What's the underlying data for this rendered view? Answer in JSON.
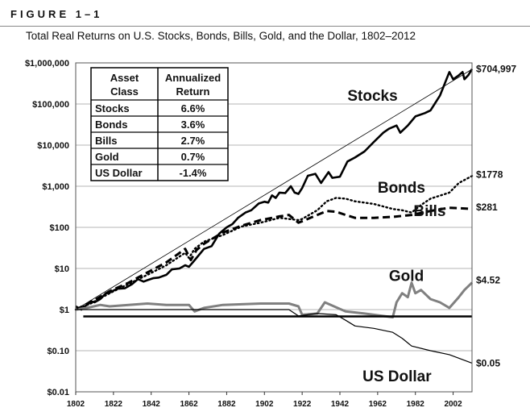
{
  "figure_label": "FIGURE 1–1",
  "figure_title": "Total Real Returns on U.S. Stocks, Bonds, Bills, Gold, and the Dollar, 1802–2012",
  "colors": {
    "stocks": "#000000",
    "bonds": "#000000",
    "bills": "#000000",
    "gold": "#808080",
    "dollar": "#000000",
    "trend": "#000000"
  },
  "table": {
    "header_col1_line1": "Asset",
    "header_col1_line2": "Class",
    "header_col2_line1": "Annualized",
    "header_col2_line2": "Return",
    "rows": [
      {
        "asset": "Stocks",
        "ret": "6.6%"
      },
      {
        "asset": "Bonds",
        "ret": "3.6%"
      },
      {
        "asset": "Bills",
        "ret": "2.7%"
      },
      {
        "asset": "Gold",
        "ret": "0.7%"
      },
      {
        "asset": "US Dollar",
        "ret": "-1.4%"
      }
    ]
  },
  "chart_data": {
    "type": "line",
    "y_scale": "log",
    "ylim": [
      0.01,
      1000000
    ],
    "xlim": [
      1802,
      2012
    ],
    "y_ticks": [
      {
        "value": 1000000,
        "label": "$1,000,000"
      },
      {
        "value": 100000,
        "label": "$100,000"
      },
      {
        "value": 10000,
        "label": "$10,000"
      },
      {
        "value": 1000,
        "label": "$1,000"
      },
      {
        "value": 100,
        "label": "$100"
      },
      {
        "value": 10,
        "label": "$10"
      },
      {
        "value": 1,
        "label": "$1"
      },
      {
        "value": 0.1,
        "label": "$0.10"
      },
      {
        "value": 0.01,
        "label": "$0.01"
      }
    ],
    "x_ticks": [
      1802,
      1822,
      1842,
      1862,
      1882,
      1902,
      1922,
      1942,
      1962,
      1982,
      2002
    ],
    "grid": true,
    "series": [
      {
        "name": "Stocks",
        "end_label": "$704,997",
        "x": [
          1802,
          1805,
          1810,
          1812,
          1815,
          1818,
          1820,
          1824,
          1828,
          1832,
          1835,
          1838,
          1840,
          1843,
          1846,
          1850,
          1853,
          1857,
          1860,
          1862,
          1864,
          1866,
          1870,
          1874,
          1878,
          1882,
          1885,
          1888,
          1892,
          1895,
          1899,
          1902,
          1904,
          1906,
          1908,
          1910,
          1913,
          1916,
          1918,
          1920,
          1922,
          1925,
          1929,
          1932,
          1936,
          1938,
          1942,
          1946,
          1950,
          1955,
          1960,
          1965,
          1968,
          1972,
          1974,
          1978,
          1982,
          1987,
          1990,
          1995,
          2000,
          2002,
          2005,
          2007,
          2008,
          2010,
          2012
        ],
        "values": [
          1.2,
          1.0,
          1.6,
          1.5,
          1.8,
          2.5,
          2.6,
          3.2,
          3.3,
          4.2,
          5.5,
          4.8,
          5.2,
          5.8,
          6.0,
          7.0,
          9.5,
          10.0,
          12.0,
          11.0,
          14,
          18,
          30,
          35,
          70,
          100,
          120,
          170,
          230,
          260,
          380,
          420,
          400,
          600,
          520,
          700,
          680,
          1000,
          700,
          650,
          900,
          1800,
          2000,
          1200,
          2200,
          1600,
          1700,
          4000,
          5000,
          7000,
          12000,
          20000,
          25000,
          30000,
          20000,
          30000,
          50000,
          60000,
          70000,
          160000,
          600000,
          400000,
          500000,
          600000,
          400000,
          500000,
          704997
        ]
      },
      {
        "name": "Bonds",
        "end_label": "$1778",
        "x": [
          1802,
          1810,
          1820,
          1830,
          1840,
          1850,
          1860,
          1862,
          1865,
          1870,
          1880,
          1890,
          1900,
          1910,
          1920,
          1922,
          1930,
          1935,
          1940,
          1945,
          1950,
          1960,
          1970,
          1975,
          1980,
          1985,
          1990,
          2000,
          2005,
          2012
        ],
        "values": [
          1.0,
          1.4,
          2.5,
          4.2,
          7,
          12,
          24,
          18,
          30,
          45,
          65,
          105,
          130,
          170,
          150,
          160,
          260,
          430,
          520,
          500,
          430,
          370,
          280,
          260,
          230,
          350,
          500,
          700,
          1200,
          1778
        ]
      },
      {
        "name": "Bills",
        "end_label": "$281",
        "x": [
          1802,
          1810,
          1820,
          1830,
          1840,
          1850,
          1860,
          1863,
          1866,
          1870,
          1880,
          1890,
          1900,
          1910,
          1915,
          1920,
          1922,
          1930,
          1935,
          1940,
          1945,
          1950,
          1960,
          1970,
          1980,
          1990,
          2000,
          2012
        ],
        "values": [
          1.0,
          1.5,
          2.8,
          4.5,
          8,
          14,
          30,
          16,
          28,
          40,
          75,
          110,
          150,
          185,
          200,
          130,
          140,
          200,
          250,
          240,
          200,
          170,
          170,
          180,
          200,
          250,
          300,
          281
        ]
      },
      {
        "name": "Gold",
        "end_label": "$4.52",
        "x": [
          1802,
          1808,
          1815,
          1820,
          1830,
          1840,
          1850,
          1862,
          1865,
          1870,
          1880,
          1900,
          1915,
          1920,
          1922,
          1930,
          1934,
          1945,
          1955,
          1970,
          1972,
          1975,
          1978,
          1980,
          1982,
          1985,
          1990,
          1995,
          2000,
          2005,
          2008,
          2012
        ],
        "values": [
          1.0,
          1.1,
          1.3,
          1.2,
          1.3,
          1.4,
          1.3,
          1.3,
          0.9,
          1.1,
          1.3,
          1.4,
          1.4,
          1.2,
          0.75,
          0.8,
          1.5,
          0.9,
          0.8,
          0.65,
          1.5,
          2.5,
          2.0,
          4.5,
          2.5,
          3.0,
          1.8,
          1.5,
          1.1,
          2.0,
          3.0,
          4.52
        ]
      },
      {
        "name": "US Dollar",
        "end_label": "$0.05",
        "x": [
          1802,
          1810,
          1830,
          1860,
          1900,
          1915,
          1920,
          1930,
          1940,
          1945,
          1950,
          1960,
          1970,
          1975,
          1980,
          1990,
          2000,
          2012
        ],
        "values": [
          1.0,
          1.0,
          1.0,
          1.0,
          1.0,
          1.0,
          0.7,
          0.8,
          0.75,
          0.55,
          0.4,
          0.35,
          0.28,
          0.2,
          0.13,
          0.1,
          0.08,
          0.05
        ]
      },
      {
        "name": "trend",
        "x": [
          1802,
          2012
        ],
        "values": [
          1.0,
          700000
        ]
      },
      {
        "name": "baseline",
        "x": [
          1806,
          2012
        ],
        "values": [
          0.68,
          0.68
        ]
      }
    ]
  }
}
